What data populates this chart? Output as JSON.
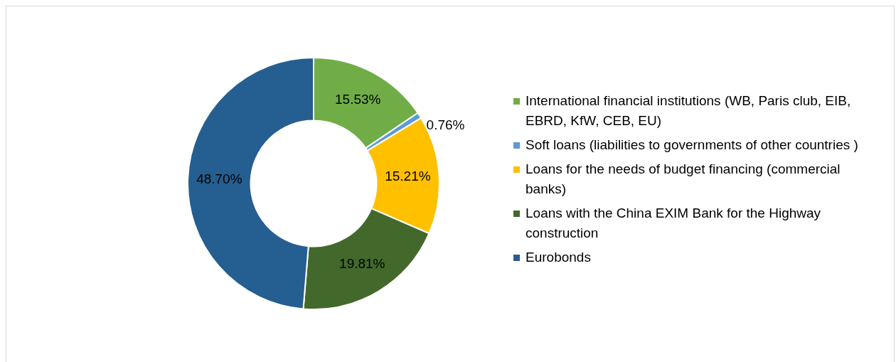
{
  "chart_data": {
    "type": "donut",
    "categories": [
      "International financial institutions (WB, Paris club, EIB, EBRD, KfW, CEB, EU)",
      "Soft loans (liabilities to governments of other countries )",
      "Loans for the needs of budget financing (commercial banks)",
      "Loans with the China EXIM Bank for the Highway construction",
      "Eurobonds"
    ],
    "values": [
      15.53,
      0.76,
      15.21,
      19.81,
      48.7
    ],
    "colors": [
      "#70ad47",
      "#5b9bd5",
      "#ffc000",
      "#43682b",
      "#255e91"
    ],
    "value_labels": [
      "15.53%",
      "0.76%",
      "15.21%",
      "19.81%",
      "48.70%"
    ],
    "legend": "right"
  }
}
